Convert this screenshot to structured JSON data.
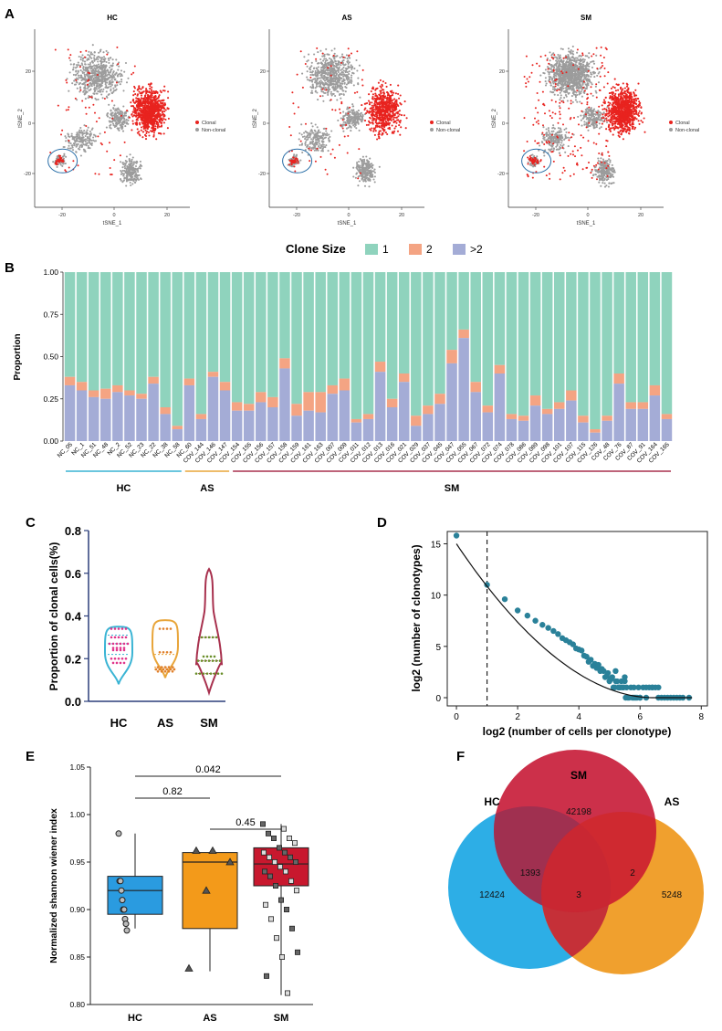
{
  "panel_labels": {
    "a": "A",
    "b": "B",
    "c": "C",
    "d": "D",
    "e": "E",
    "f": "F"
  },
  "colors": {
    "clonal": "#e8231f",
    "nonclonal": "#9c9c9c",
    "circle": "#2a6fa8",
    "size1": "#8fd3bd",
    "size2": "#f4a483",
    "size3": "#a4acd6",
    "hc": "#3ab4d4",
    "as": "#e8a53a",
    "sm": "#a8314e",
    "d_point": "#2a8199",
    "e_hc": "#2a9be0",
    "e_as": "#f39a1a",
    "e_sm": "#c8182e",
    "v_hc": "#2daee6",
    "v_sm": "#c81e3b",
    "v_as": "#f0a02e",
    "v_overlap": "#a03050"
  },
  "panel_a": {
    "plots": [
      {
        "title": "HC"
      },
      {
        "title": "AS"
      },
      {
        "title": "SM"
      }
    ],
    "xlabel": "tSNE_1",
    "ylabel": "tSNE_2",
    "xticks": [
      "-20",
      "0",
      "20"
    ],
    "yticks": [
      "20",
      "0",
      "-20"
    ],
    "legend": [
      "Clonal",
      "Non-clonal"
    ]
  },
  "chart_data": [
    {
      "id": "panel_b",
      "type": "bar",
      "title": "Clone Size",
      "legend": [
        "1",
        "2",
        ">2"
      ],
      "ylabel": "Proportion",
      "ylim": [
        0,
        1
      ],
      "yticks": [
        "0.00",
        "0.25",
        "0.50",
        "0.75",
        "1.00"
      ],
      "categories": [
        "NC_05",
        "NC_1",
        "NC_51",
        "NC_48",
        "NC_2",
        "NC_52",
        "NC_23",
        "NC_22",
        "NC_38",
        "NC_58",
        "NC_60",
        "COV_144",
        "COV_146",
        "COV_147",
        "COV_154",
        "COV_155",
        "COV_156",
        "COV_157",
        "COV_158",
        "COV_159",
        "COV_161",
        "COV_163",
        "COV_007",
        "COV_009",
        "COV_011",
        "COV_012",
        "COV_013",
        "COV_016",
        "COV_021",
        "COV_029",
        "COV_037",
        "COV_045",
        "COV_047",
        "COV_055",
        "COV_067",
        "COV_072",
        "COV_074",
        "COV_078",
        "COV_086",
        "COV_089",
        "COV_098",
        "COV_101",
        "COV_107",
        "COV_115",
        "COV_126",
        "COV_48",
        "COV_76",
        "COV_87",
        "COV_91",
        "COV_164",
        "COV_165"
      ],
      "gt2": [
        0.33,
        0.3,
        0.26,
        0.25,
        0.29,
        0.27,
        0.25,
        0.34,
        0.16,
        0.07,
        0.33,
        0.13,
        0.38,
        0.3,
        0.18,
        0.18,
        0.23,
        0.2,
        0.43,
        0.15,
        0.18,
        0.17,
        0.28,
        0.3,
        0.11,
        0.13,
        0.41,
        0.2,
        0.35,
        0.09,
        0.16,
        0.22,
        0.46,
        0.61,
        0.29,
        0.17,
        0.4,
        0.13,
        0.12,
        0.21,
        0.16,
        0.19,
        0.24,
        0.11,
        0.05,
        0.12,
        0.34,
        0.19,
        0.19,
        0.27,
        0.13
      ],
      "s2": [
        0.05,
        0.05,
        0.04,
        0.06,
        0.04,
        0.03,
        0.03,
        0.04,
        0.04,
        0.02,
        0.04,
        0.03,
        0.03,
        0.05,
        0.05,
        0.04,
        0.06,
        0.06,
        0.06,
        0.07,
        0.11,
        0.12,
        0.05,
        0.07,
        0.02,
        0.03,
        0.06,
        0.05,
        0.05,
        0.06,
        0.05,
        0.06,
        0.08,
        0.05,
        0.06,
        0.04,
        0.05,
        0.03,
        0.03,
        0.06,
        0.03,
        0.04,
        0.06,
        0.04,
        0.02,
        0.03,
        0.06,
        0.04,
        0.04,
        0.06,
        0.03
      ],
      "groups": [
        {
          "name": "HC",
          "start": 0,
          "end": 9
        },
        {
          "name": "AS",
          "start": 10,
          "end": 13
        },
        {
          "name": "SM",
          "start": 14,
          "end": 50
        }
      ]
    },
    {
      "id": "panel_c",
      "type": "violin",
      "ylabel": "Proportion of clonal cells(%)",
      "ylim": [
        0,
        0.8
      ],
      "yticks": [
        "0.0",
        "0.2",
        "0.4",
        "0.6",
        "0.8"
      ],
      "categories": [
        "HC",
        "AS",
        "SM"
      ],
      "ranges": [
        [
          0.08,
          0.35
        ],
        [
          0.11,
          0.38
        ],
        [
          0.04,
          0.62
        ]
      ],
      "points": [
        [
          0.34,
          0.34,
          0.3,
          0.3,
          0.27,
          0.27,
          0.27,
          0.25,
          0.24,
          0.2,
          0.2,
          0.18
        ],
        [
          0.34,
          0.23,
          0.16,
          0.16,
          0.15,
          0.15,
          0.15,
          0.14,
          0.14
        ],
        [
          0.3,
          0.3,
          0.21,
          0.19,
          0.19,
          0.19,
          0.19,
          0.13,
          0.13,
          0.13,
          0.13,
          0.13
        ]
      ]
    },
    {
      "id": "panel_d",
      "type": "scatter",
      "xlabel": "log2 (number of cells per clonotype)",
      "ylabel": "log2 (number of clonotypes)",
      "xlim": [
        -0.3,
        8.2
      ],
      "ylim": [
        -0.8,
        16.2
      ],
      "xticks": [
        "0",
        "2",
        "4",
        "6",
        "8"
      ],
      "yticks": [
        "0",
        "5",
        "10",
        "15"
      ],
      "cutoff_x": 1,
      "x": [
        0,
        1,
        1.58,
        2,
        2.32,
        2.58,
        2.81,
        3,
        3.17,
        3.32,
        3.46,
        3.58,
        3.7,
        3.81,
        3.91,
        4,
        4.09,
        4.17,
        4.25,
        4.32,
        4.39,
        4.46,
        4.52,
        4.58,
        4.64,
        4.7,
        4.75,
        4.81,
        4.86,
        4.91,
        4.95,
        5,
        5.04,
        5.09,
        5.13,
        5.17,
        5.21,
        5.25,
        5.29,
        5.32,
        5.36,
        5.39,
        5.43,
        5.46,
        5.5,
        5.53,
        5.56,
        5.6,
        5.64,
        5.7,
        5.75,
        5.8,
        5.85,
        5.9,
        5.95,
        6.0,
        6.1,
        6.2,
        6.3,
        6.4,
        6.5,
        6.6,
        6.7,
        6.8,
        7.0,
        7.2,
        7.4,
        7.6,
        5.2,
        5.5,
        5.8,
        6.0,
        6.2,
        6.4,
        6.6,
        6.9,
        7.1,
        7.3
      ],
      "y": [
        15.8,
        11,
        9.6,
        8.5,
        8.0,
        7.5,
        7.1,
        6.8,
        6.5,
        6.2,
        5.8,
        5.6,
        5.4,
        5.2,
        4.8,
        4.7,
        4.6,
        4.1,
        4.0,
        3.5,
        3.7,
        3.1,
        3.3,
        2.9,
        3.2,
        2.6,
        2.8,
        2.6,
        2.0,
        2.1,
        2.4,
        1.6,
        1.8,
        2.0,
        1.0,
        1.0,
        1.6,
        1.6,
        1.0,
        1.0,
        1.0,
        1.6,
        1.0,
        1.0,
        1.6,
        0,
        1.0,
        0,
        0,
        1.0,
        0,
        1.0,
        0,
        0,
        1.0,
        0,
        1.0,
        1.0,
        1.0,
        1.0,
        1.0,
        1.0,
        0,
        0,
        0,
        0,
        0,
        0,
        2.6,
        2.0,
        0,
        0,
        0,
        1.0,
        0,
        0,
        0,
        0
      ]
    },
    {
      "id": "panel_e",
      "type": "box",
      "ylabel": "Normalized shannon wiener index",
      "ylim": [
        0.8,
        1.05
      ],
      "yticks": [
        "0.80",
        "0.85",
        "0.90",
        "0.95",
        "1.00",
        "1.05"
      ],
      "categories": [
        "HC",
        "AS",
        "SM"
      ],
      "boxes": [
        {
          "min": 0.88,
          "q1": 0.895,
          "median": 0.92,
          "q3": 0.935,
          "max": 0.98
        },
        {
          "min": 0.835,
          "q1": 0.88,
          "median": 0.95,
          "q3": 0.96,
          "max": 0.96
        },
        {
          "min": 0.81,
          "q1": 0.925,
          "median": 0.948,
          "q3": 0.965,
          "max": 0.99
        }
      ],
      "points": [
        [
          0.98,
          0.93,
          0.93,
          0.92,
          0.91,
          0.9,
          0.9,
          0.89,
          0.885,
          0.878
        ],
        [
          0.962,
          0.962,
          0.95,
          0.92,
          0.838
        ],
        [
          0.99,
          0.985,
          0.98,
          0.975,
          0.975,
          0.97,
          0.965,
          0.96,
          0.96,
          0.955,
          0.955,
          0.95,
          0.95,
          0.945,
          0.94,
          0.94,
          0.935,
          0.93,
          0.925,
          0.92,
          0.91,
          0.905,
          0.9,
          0.89,
          0.88,
          0.87,
          0.855,
          0.85,
          0.83,
          0.812
        ]
      ],
      "comparisons": [
        {
          "from": 0,
          "to": 2,
          "p": "0.042"
        },
        {
          "from": 0,
          "to": 1,
          "p": "0.82"
        },
        {
          "from": 1,
          "to": 2,
          "p": "0.45"
        }
      ]
    },
    {
      "id": "panel_f",
      "type": "venn",
      "sets": [
        "HC",
        "SM",
        "AS"
      ],
      "values": {
        "hc_only": "12424",
        "sm_only": "42198",
        "as_only": "5248",
        "hc_sm": "1393",
        "sm_as": "2",
        "all": "3"
      }
    }
  ]
}
